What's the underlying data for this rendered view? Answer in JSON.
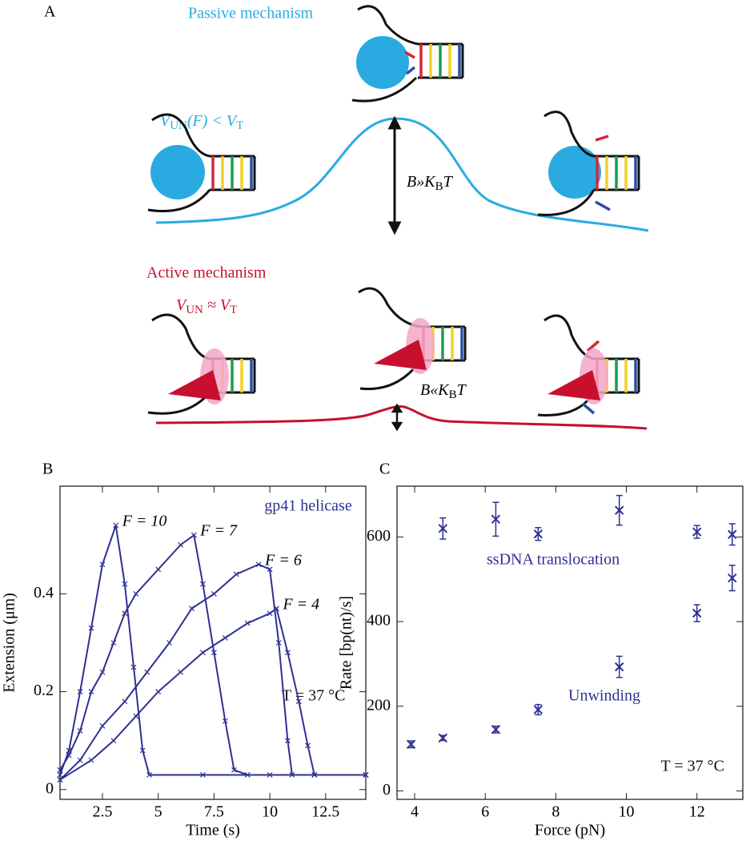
{
  "panel_a": {
    "label": "A",
    "passive": {
      "title": "Passive mechanism",
      "condition": [
        "V",
        "UN",
        "(F) < V",
        "T"
      ],
      "barrier": [
        "B»K",
        "B",
        "T"
      ]
    },
    "active": {
      "title": "Active mechanism",
      "condition": [
        "V",
        "UN",
        " ≈ V",
        "T"
      ],
      "barrier": [
        "B«K",
        "B",
        "T"
      ]
    }
  },
  "chart_data": [
    {
      "type": "line",
      "label": "B",
      "xlabel": "Time (s)",
      "ylabel": "Extension (μm)",
      "xlim": [
        0.6,
        14.3
      ],
      "ylim": [
        -0.02,
        0.62
      ],
      "xticks": [
        2.5,
        5,
        7.5,
        10,
        12.5
      ],
      "yticks": [
        0,
        0.2,
        0.4
      ],
      "annotations": [
        "gp41 helicase",
        "T = 37 °C"
      ],
      "series": [
        {
          "name": "F = 10",
          "color": "#2e3192",
          "x": [
            0.6,
            1,
            1.5,
            2,
            2.5,
            3.1,
            3.5,
            3.9,
            4.3,
            4.6,
            7,
            10,
            14.3
          ],
          "values": [
            0.03,
            0.08,
            0.2,
            0.33,
            0.46,
            0.54,
            0.42,
            0.25,
            0.08,
            0.03,
            0.03,
            0.03,
            0.03
          ]
        },
        {
          "name": "F = 7",
          "color": "#2e3192",
          "x": [
            0.6,
            1,
            1.5,
            2,
            2.5,
            3,
            3.5,
            4,
            5,
            6,
            6.6,
            7,
            7.5,
            8,
            8.4,
            9,
            12,
            14.3
          ],
          "values": [
            0.04,
            0.07,
            0.12,
            0.2,
            0.24,
            0.3,
            0.36,
            0.4,
            0.45,
            0.5,
            0.52,
            0.42,
            0.28,
            0.14,
            0.04,
            0.03,
            0.03,
            0.03
          ]
        },
        {
          "name": "F = 6",
          "color": "#2e3192",
          "x": [
            0.6,
            1.5,
            2.5,
            3.5,
            4.5,
            5.5,
            6.5,
            7.5,
            8.5,
            9.5,
            10,
            10.4,
            10.8,
            11,
            12,
            14.3
          ],
          "values": [
            0.02,
            0.06,
            0.13,
            0.18,
            0.24,
            0.3,
            0.37,
            0.4,
            0.44,
            0.46,
            0.45,
            0.3,
            0.1,
            0.03,
            0.03,
            0.03
          ]
        },
        {
          "name": "F = 4",
          "color": "#2e3192",
          "x": [
            0.6,
            2,
            3,
            4,
            5,
            6,
            7,
            8,
            9,
            10,
            10.3,
            10.8,
            11.3,
            11.7,
            12,
            14.3
          ],
          "values": [
            0.02,
            0.06,
            0.1,
            0.15,
            0.2,
            0.24,
            0.28,
            0.31,
            0.34,
            0.36,
            0.37,
            0.28,
            0.18,
            0.09,
            0.03,
            0.03
          ]
        }
      ]
    },
    {
      "type": "scatter",
      "label": "C",
      "xlabel": "Force (pN)",
      "ylabel": "Rate [bp(nt)/s]",
      "xlim": [
        3.5,
        13.3
      ],
      "ylim": [
        -20,
        720
      ],
      "xticks": [
        4,
        6,
        8,
        10,
        12
      ],
      "yticks": [
        0,
        200,
        400,
        600
      ],
      "annotations": [
        "T = 37 °C"
      ],
      "series": [
        {
          "name": "ssDNA translocation",
          "color": "#2e3192",
          "x": [
            4.8,
            6.3,
            7.5,
            9.8,
            12,
            13
          ],
          "values": [
            620,
            642,
            607,
            663,
            612,
            606
          ],
          "errors": [
            25,
            40,
            15,
            35,
            15,
            25
          ]
        },
        {
          "name": "Unwinding",
          "color": "#2e3192",
          "x": [
            3.9,
            4.8,
            6.3,
            7.5,
            9.8,
            12,
            13
          ],
          "values": [
            110,
            125,
            145,
            192,
            293,
            420,
            503
          ],
          "errors": [
            8,
            6,
            8,
            12,
            25,
            20,
            30
          ]
        }
      ]
    }
  ]
}
